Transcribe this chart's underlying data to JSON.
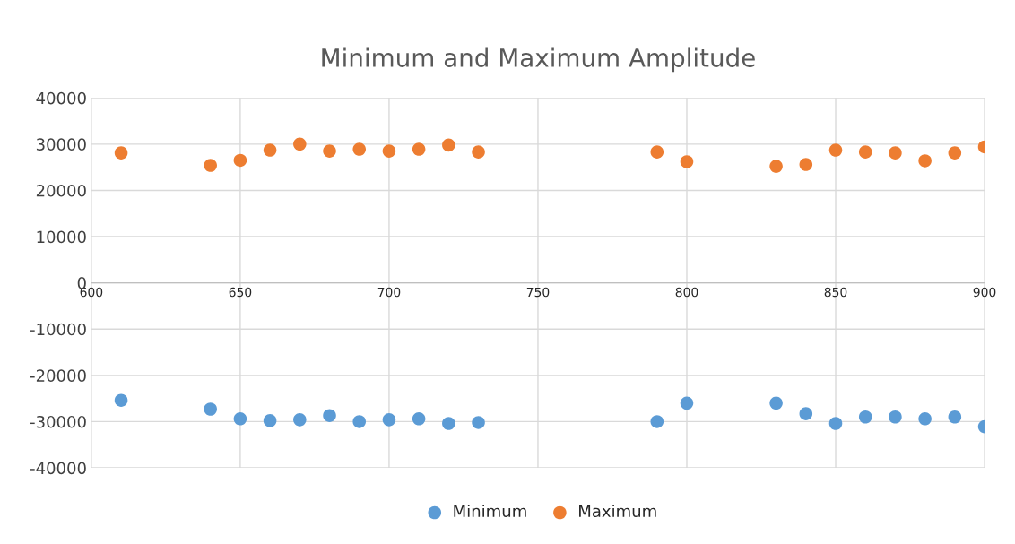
{
  "chart_data": {
    "type": "scatter",
    "title": "Minimum and Maximum Amplitude",
    "x": [
      610,
      640,
      650,
      660,
      670,
      680,
      690,
      700,
      710,
      720,
      730,
      790,
      800,
      830,
      840,
      850,
      860,
      870,
      880,
      890,
      900
    ],
    "series": [
      {
        "name": "Minimum",
        "color": "#5b9bd5",
        "values": [
          -25400,
          -27300,
          -29400,
          -29800,
          -29600,
          -28700,
          -30000,
          -29600,
          -29400,
          -30400,
          -30200,
          -30000,
          -26000,
          -26000,
          -28300,
          -30400,
          -29000,
          -29000,
          -29400,
          -29000,
          -31100
        ]
      },
      {
        "name": "Maximum",
        "color": "#ed7d31",
        "values": [
          28100,
          25400,
          26500,
          28700,
          30000,
          28500,
          28900,
          28500,
          28900,
          29800,
          28300,
          28300,
          26200,
          25200,
          25600,
          28700,
          28300,
          28100,
          26400,
          28100,
          29400
        ]
      }
    ],
    "xlim": [
      600,
      900
    ],
    "xticks": [
      600,
      650,
      700,
      750,
      800,
      850,
      900
    ],
    "ylim": [
      -40000,
      40000
    ],
    "yticks": [
      -40000,
      -30000,
      -20000,
      -10000,
      0,
      10000,
      20000,
      30000,
      40000
    ],
    "grid": true,
    "legend": "bottom",
    "marker": "circle"
  }
}
